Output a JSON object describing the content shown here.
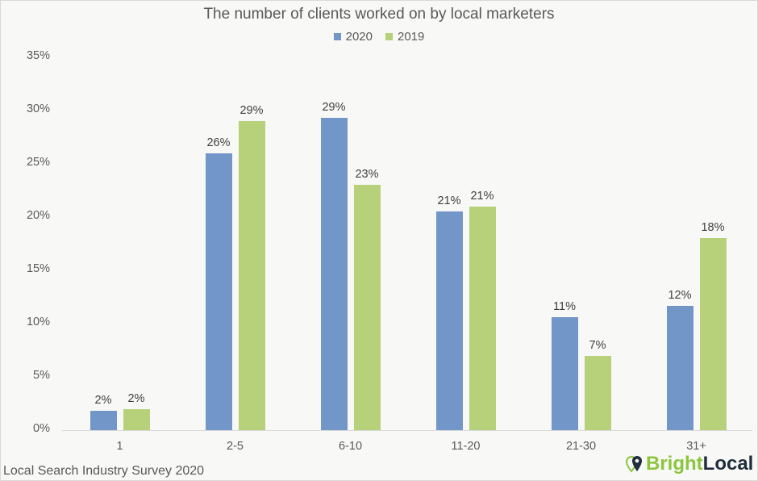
{
  "chart_data": {
    "type": "bar",
    "title": "The number of clients worked on by local marketers",
    "xlabel": "",
    "ylabel": "",
    "ylim": [
      0,
      35
    ],
    "yticks": [
      "0%",
      "5%",
      "10%",
      "15%",
      "20%",
      "25%",
      "30%",
      "35%"
    ],
    "grid": false,
    "legend_position": "top",
    "categories": [
      "1",
      "2-5",
      "6-10",
      "11-20",
      "21-30",
      "31+"
    ],
    "series": [
      {
        "name": "2020",
        "color": "#7396c9",
        "values": [
          1.8,
          26,
          29.3,
          20.5,
          10.6,
          11.7
        ],
        "labels": [
          "2%",
          "26%",
          "29%",
          "21%",
          "11%",
          "12%"
        ]
      },
      {
        "name": "2019",
        "color": "#b6d17a",
        "values": [
          2,
          29,
          23,
          21,
          7,
          18
        ],
        "labels": [
          "2%",
          "29%",
          "23%",
          "21%",
          "7%",
          "18%"
        ]
      }
    ]
  },
  "legend": {
    "items": [
      {
        "label": "2020"
      },
      {
        "label": "2019"
      }
    ]
  },
  "footer": {
    "source": "Local Search Industry Survey 2020"
  },
  "logo": {
    "part1": "Bright",
    "part2": "Local"
  }
}
